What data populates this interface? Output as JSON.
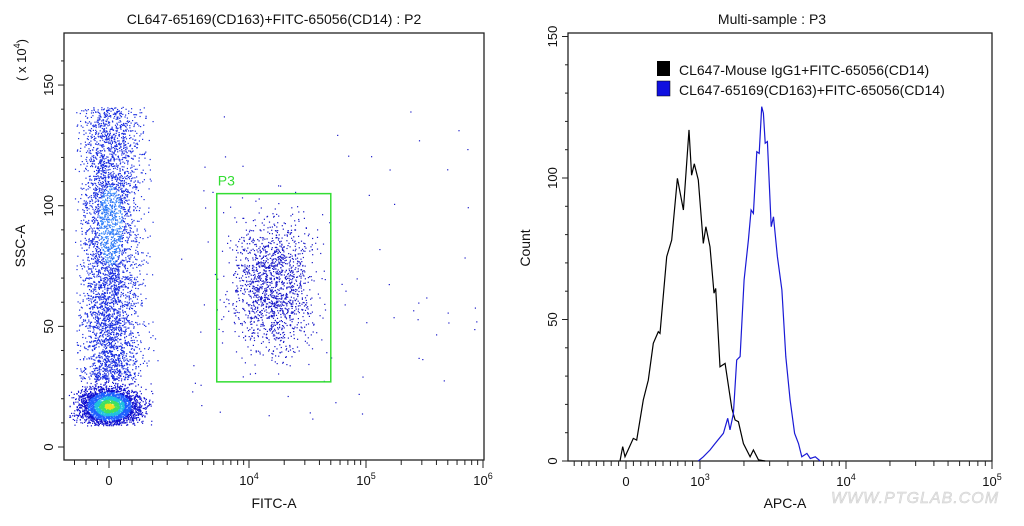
{
  "chart_data": [
    {
      "type": "scatter",
      "title": "CL647-65169(CD163)+FITC-65056(CD14) : P2",
      "xlabel": "FITC-A",
      "ylabel": "SSC-A",
      "y_multiplier": {
        "prefix": "( x 10",
        "exp": "4",
        "suffix": ")"
      },
      "x_scale": "biexponential",
      "xlim": [
        -1950,
        1000000
      ],
      "ylim": [
        -5,
        168
      ],
      "x_ticks": [
        {
          "value": 0,
          "base": "0",
          "exp": ""
        },
        {
          "value": 10000,
          "base": "10",
          "exp": "4"
        },
        {
          "value": 100000,
          "base": "10",
          "exp": "5"
        },
        {
          "value": 1000000,
          "base": "10",
          "exp": "6"
        }
      ],
      "y_ticks": [
        0,
        50,
        100,
        150
      ],
      "populations": [
        {
          "x_range": [
            -1800,
            1500
          ],
          "y_range": [
            9,
            32
          ],
          "count": 3200,
          "coloring": "density",
          "center": [
            0,
            17
          ]
        },
        {
          "x_range": [
            -1500,
            1900
          ],
          "y_range": [
            28,
            141
          ],
          "count": 4200,
          "coloring": "streak",
          "center": [
            50,
            92
          ]
        },
        {
          "x_range": [
            5000,
            45000
          ],
          "y_range": [
            28,
            104
          ],
          "count": 1500,
          "coloring": "plain",
          "center": [
            16000,
            68
          ]
        },
        {
          "x_range": [
            2000,
            900000
          ],
          "y_range": [
            8,
            140
          ],
          "count": 90,
          "coloring": "sparse",
          "center": [
            30000,
            70
          ]
        }
      ],
      "gate": {
        "label": "P3",
        "x": [
          5300,
          50000
        ],
        "y": [
          27,
          105
        ],
        "color": "#33dd33"
      },
      "grid": false
    },
    {
      "type": "line",
      "title": "Multi-sample : P3",
      "xlabel": "APC-A",
      "ylabel": "Count",
      "x_scale": "biexponential",
      "xlim": [
        -780,
        100000
      ],
      "ylim": [
        0,
        150
      ],
      "x_ticks": [
        {
          "value": 0,
          "base": "0",
          "exp": ""
        },
        {
          "value": 1000,
          "base": "10",
          "exp": "3"
        },
        {
          "value": 10000,
          "base": "10",
          "exp": "4"
        },
        {
          "value": 100000,
          "base": "10",
          "exp": "5"
        }
      ],
      "y_ticks": [
        0,
        50,
        100,
        150
      ],
      "legend_position": "top-right",
      "grid": false,
      "series": [
        {
          "name": "CL647-Mouse IgG1+FITC-65056(CD14)",
          "color": "#000000",
          "x": [
            -81,
            -45,
            -14,
            99,
            144,
            189,
            234,
            302,
            369,
            437,
            459,
            550,
            617,
            694,
            775,
            851,
            887,
            923,
            977,
            1054,
            1098,
            1171,
            1248,
            1281,
            1371,
            1485,
            1650,
            1739,
            1833,
            1983,
            2204,
            2323,
            2514,
            2795
          ],
          "y": [
            0,
            5.1,
            1.5,
            8,
            7.4,
            14.5,
            21.6,
            28.6,
            41.6,
            45.7,
            45.1,
            72.2,
            78.1,
            99.9,
            88.7,
            117,
            101,
            105,
            99.3,
            76.9,
            82.8,
            75.7,
            59.3,
            61,
            33.3,
            34.5,
            18.6,
            14.5,
            13.9,
            6.2,
            1.5,
            3.9,
            0.4,
            0
          ]
        },
        {
          "name": "CL647-65169(CD163)+FITC-65056(CD14)",
          "color": "#1a1ad6",
          "x": [
            977,
            1054,
            1171,
            1268,
            1446,
            1549,
            1606,
            1693,
            1785,
            1881,
            2005,
            2147,
            2240,
            2323,
            2449,
            2543,
            2648,
            2719,
            2795,
            2897,
            3072,
            3188,
            3389,
            3636,
            3871,
            4141,
            4443,
            4726,
            4980,
            5397,
            5695,
            6163,
            6660
          ],
          "y": [
            0,
            1.5,
            3.9,
            6.2,
            9.8,
            15.1,
            11,
            16.8,
            35.7,
            36.9,
            64,
            78.1,
            88.7,
            87.5,
            109.3,
            108.7,
            125.2,
            122.9,
            112.3,
            112.9,
            82.8,
            86.3,
            72.2,
            60.4,
            36.9,
            21.6,
            9.8,
            6.2,
            1.5,
            2.7,
            0.9,
            1.5,
            0
          ]
        }
      ]
    }
  ],
  "watermark": "WWW.PTGLAB.COM"
}
